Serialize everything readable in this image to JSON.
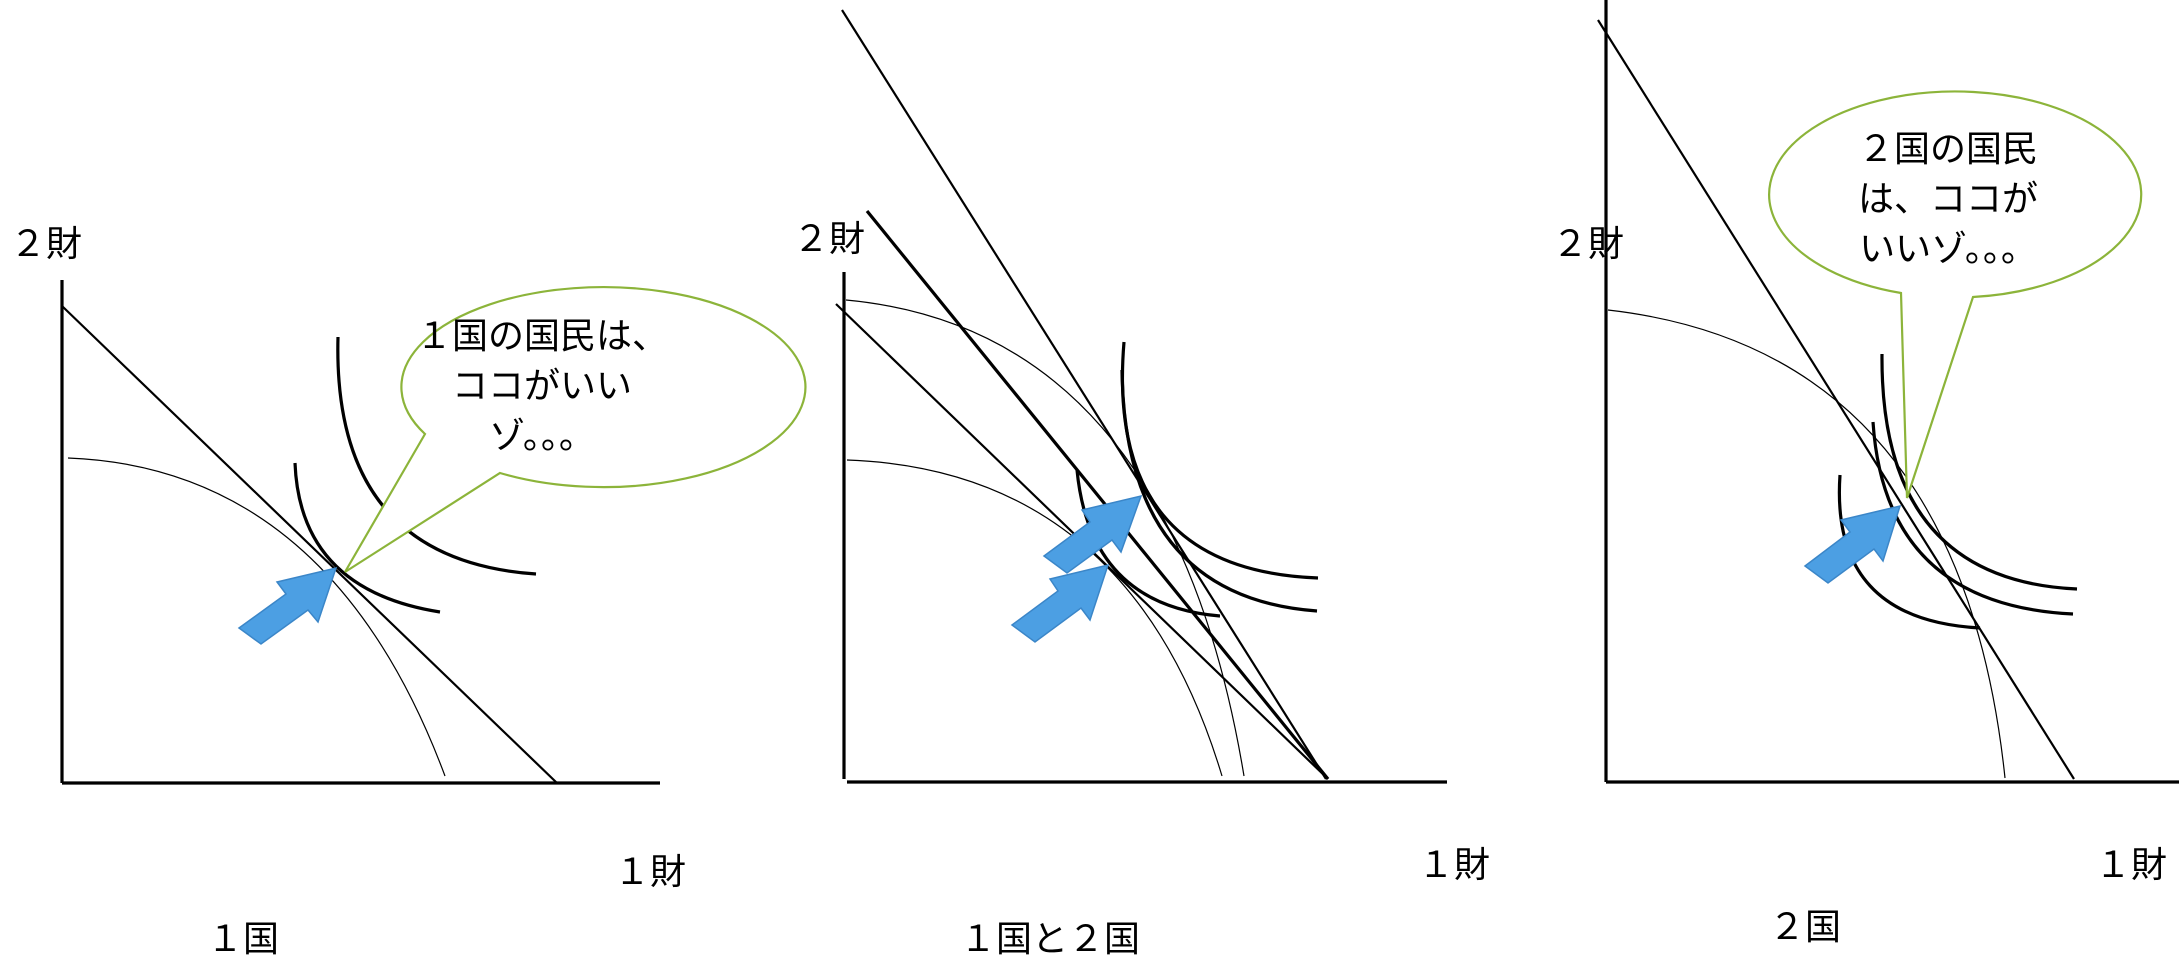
{
  "panels": [
    {
      "id": "country1",
      "y_axis_label": "２財",
      "x_axis_label": "１財",
      "title": "１国",
      "callout_lines": [
        "１国の国民は、",
        "ココがいい",
        "ゾ。。。"
      ]
    },
    {
      "id": "both",
      "y_axis_label": "２財",
      "x_axis_label": "１財",
      "title": "１国と２国"
    },
    {
      "id": "country2",
      "y_axis_label": "２財",
      "x_axis_label": "１財",
      "title": "２国",
      "callout_lines": [
        "２国の国民",
        "は、ココが",
        "いいゾ。。。"
      ]
    }
  ],
  "colors": {
    "arrow": "#4c9fe3",
    "callout_border": "#8cb43a",
    "ink": "#000000"
  }
}
